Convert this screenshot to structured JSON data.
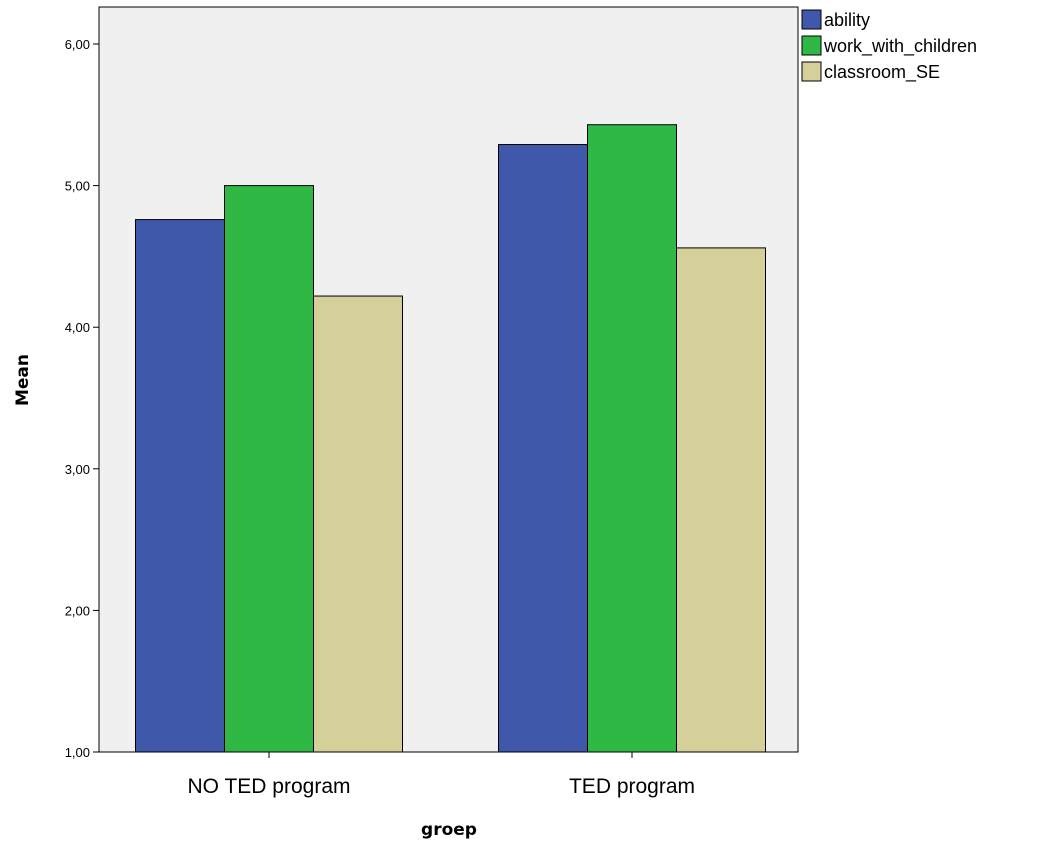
{
  "chart_data": {
    "type": "bar",
    "xlabel": "groep",
    "ylabel": "Mean",
    "ylim": [
      1,
      6.2
    ],
    "yticks": [
      1,
      2,
      3,
      4,
      5,
      6
    ],
    "ytick_labels": [
      "1,00",
      "2,00",
      "3,00",
      "4,00",
      "5,00",
      "6,00"
    ],
    "categories": [
      "NO TED program",
      "TED program"
    ],
    "series": [
      {
        "name": "ability",
        "color": "#3f58ac",
        "values": [
          4.76,
          5.29
        ]
      },
      {
        "name": "work_with_children",
        "color": "#2fb844",
        "values": [
          5.0,
          5.43
        ]
      },
      {
        "name": "classroom_SE",
        "color": "#d5cf9a",
        "values": [
          4.22,
          4.56
        ]
      }
    ],
    "grid": false,
    "legend_position": "top-right outside",
    "plot_background": "#f0f0f0"
  }
}
